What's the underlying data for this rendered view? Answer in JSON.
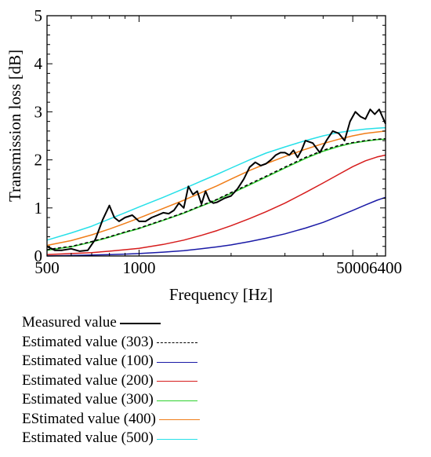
{
  "chart_data": {
    "type": "line",
    "ylabel": "Transmission loss [dB]",
    "xlabel": "Frequency [Hz]",
    "xscale": "log",
    "xlim": [
      500,
      6400
    ],
    "ylim": [
      0,
      5
    ],
    "xticks": [
      500,
      1000,
      5000,
      6400
    ],
    "xtick_labels": [
      "500",
      "1000",
      "5000",
      "6400"
    ],
    "yticks": [
      0,
      1,
      2,
      3,
      4,
      5
    ],
    "ytick_labels": [
      "0",
      "1",
      "2",
      "3",
      "4",
      "5"
    ],
    "legend_position": "below",
    "series": [
      {
        "name": "Measured value",
        "color": "#000000",
        "style": "solid",
        "x": [
          500,
          530,
          560,
          600,
          640,
          680,
          720,
          760,
          800,
          830,
          860,
          900,
          950,
          1000,
          1050,
          1100,
          1150,
          1200,
          1250,
          1300,
          1350,
          1400,
          1450,
          1500,
          1550,
          1600,
          1650,
          1700,
          1750,
          1800,
          1900,
          2000,
          2100,
          2200,
          2300,
          2400,
          2500,
          2600,
          2700,
          2800,
          2900,
          3000,
          3100,
          3200,
          3300,
          3400,
          3500,
          3700,
          3900,
          4100,
          4300,
          4500,
          4700,
          4900,
          5100,
          5300,
          5500,
          5700,
          5900,
          6100,
          6400
        ],
        "y": [
          0.2,
          0.12,
          0.12,
          0.15,
          0.1,
          0.12,
          0.35,
          0.75,
          1.05,
          0.8,
          0.72,
          0.8,
          0.85,
          0.72,
          0.72,
          0.8,
          0.85,
          0.9,
          0.88,
          0.95,
          1.1,
          1.0,
          1.45,
          1.28,
          1.35,
          1.08,
          1.35,
          1.15,
          1.1,
          1.12,
          1.2,
          1.25,
          1.4,
          1.6,
          1.85,
          1.95,
          1.88,
          1.92,
          2.0,
          2.1,
          2.15,
          2.15,
          2.1,
          2.2,
          2.05,
          2.2,
          2.4,
          2.35,
          2.15,
          2.4,
          2.6,
          2.55,
          2.4,
          2.8,
          3.0,
          2.9,
          2.85,
          3.05,
          2.95,
          3.05,
          2.75
        ]
      },
      {
        "name": "Estimated value (303)",
        "color": "#000000",
        "style": "dashed",
        "x": [
          500,
          550,
          600,
          700,
          800,
          900,
          1000,
          1200,
          1400,
          1600,
          1800,
          2000,
          2300,
          2600,
          3000,
          3500,
          4000,
          4500,
          5000,
          5500,
          6000,
          6400
        ],
        "y": [
          0.13,
          0.17,
          0.2,
          0.3,
          0.4,
          0.5,
          0.58,
          0.75,
          0.9,
          1.05,
          1.18,
          1.32,
          1.5,
          1.66,
          1.85,
          2.05,
          2.2,
          2.3,
          2.36,
          2.4,
          2.43,
          2.44
        ]
      },
      {
        "name": "Estimated value (100)",
        "color": "#1a1aa6",
        "style": "solid",
        "x": [
          500,
          600,
          700,
          800,
          900,
          1000,
          1200,
          1400,
          1600,
          1800,
          2000,
          2300,
          2600,
          3000,
          3500,
          4000,
          4500,
          5000,
          5500,
          6000,
          6400
        ],
        "y": [
          0.0,
          0.01,
          0.02,
          0.03,
          0.04,
          0.05,
          0.08,
          0.11,
          0.15,
          0.19,
          0.23,
          0.3,
          0.37,
          0.46,
          0.58,
          0.7,
          0.83,
          0.95,
          1.06,
          1.16,
          1.22
        ]
      },
      {
        "name": "Estimated value (200)",
        "color": "#d61c1c",
        "style": "solid",
        "x": [
          500,
          600,
          700,
          800,
          900,
          1000,
          1200,
          1400,
          1600,
          1800,
          2000,
          2300,
          2600,
          3000,
          3500,
          4000,
          4500,
          5000,
          5500,
          6000,
          6400
        ],
        "y": [
          0.03,
          0.05,
          0.07,
          0.1,
          0.13,
          0.16,
          0.24,
          0.33,
          0.43,
          0.53,
          0.63,
          0.78,
          0.92,
          1.1,
          1.32,
          1.52,
          1.7,
          1.86,
          1.98,
          2.06,
          2.1
        ]
      },
      {
        "name": "Estimated value (300)",
        "color": "#2dd12d",
        "style": "solid",
        "x": [
          500,
          550,
          600,
          700,
          800,
          900,
          1000,
          1200,
          1400,
          1600,
          1800,
          2000,
          2300,
          2600,
          3000,
          3500,
          4000,
          4500,
          5000,
          5500,
          6000,
          6400
        ],
        "y": [
          0.12,
          0.16,
          0.19,
          0.29,
          0.39,
          0.49,
          0.57,
          0.74,
          0.89,
          1.04,
          1.17,
          1.3,
          1.48,
          1.64,
          1.83,
          2.03,
          2.18,
          2.28,
          2.35,
          2.39,
          2.42,
          2.43
        ]
      },
      {
        "name": "EStimated value (400)",
        "color": "#f07d18",
        "style": "solid",
        "x": [
          500,
          600,
          700,
          800,
          900,
          1000,
          1200,
          1400,
          1600,
          1800,
          2000,
          2300,
          2600,
          3000,
          3500,
          4000,
          4500,
          5000,
          5500,
          6000,
          6400
        ],
        "y": [
          0.22,
          0.32,
          0.44,
          0.56,
          0.68,
          0.79,
          0.99,
          1.16,
          1.32,
          1.46,
          1.6,
          1.78,
          1.92,
          2.07,
          2.22,
          2.34,
          2.43,
          2.5,
          2.55,
          2.58,
          2.6
        ]
      },
      {
        "name": "Estimated value (500)",
        "color": "#27e0e8",
        "style": "solid",
        "x": [
          500,
          600,
          700,
          800,
          900,
          1000,
          1200,
          1400,
          1600,
          1800,
          2000,
          2300,
          2600,
          3000,
          3500,
          4000,
          4500,
          5000,
          5500,
          6000,
          6400
        ],
        "y": [
          0.33,
          0.48,
          0.62,
          0.77,
          0.9,
          1.02,
          1.22,
          1.4,
          1.56,
          1.7,
          1.83,
          2.0,
          2.14,
          2.27,
          2.4,
          2.5,
          2.57,
          2.61,
          2.64,
          2.66,
          2.67
        ]
      }
    ]
  }
}
